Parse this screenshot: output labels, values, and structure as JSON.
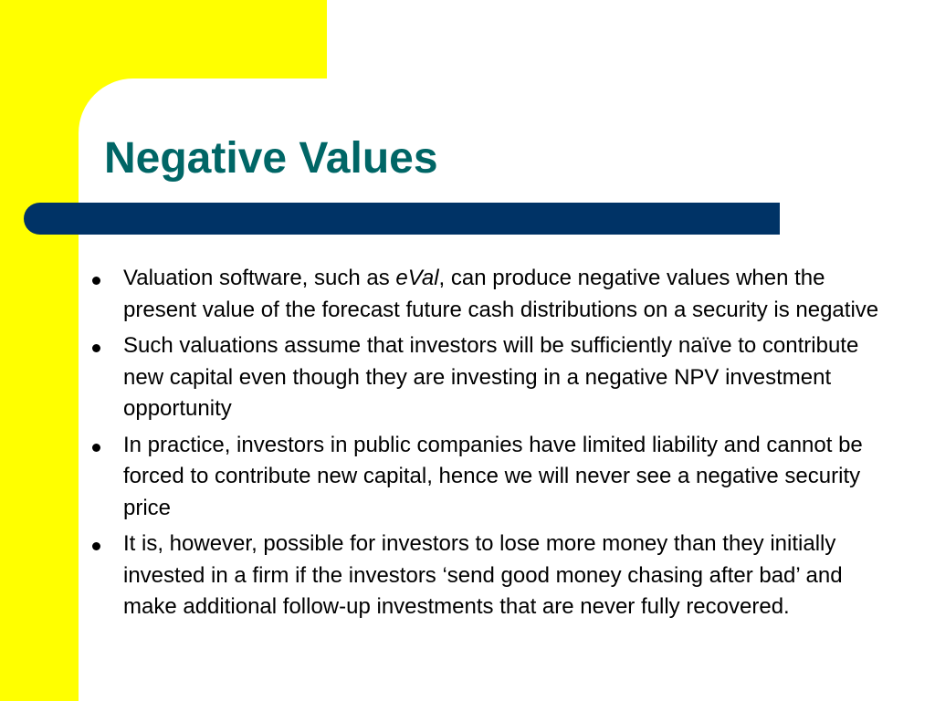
{
  "slide": {
    "title": "Negative Values",
    "bullets": [
      {
        "before": "Valuation software, such as ",
        "italic": "eVal",
        "after": ", can produce negative values when the present value of the forecast future cash distributions on a security is negative"
      },
      {
        "text": "Such valuations assume that investors will be sufficiently naïve to contribute new capital even though they are investing in a negative NPV investment opportunity"
      },
      {
        "text": "In practice, investors in public companies have limited liability and cannot be forced to contribute new capital, hence we will never see a negative security price"
      },
      {
        "text": "It is, however, possible for investors to lose more money than they initially invested in a firm if the investors ‘send good money chasing after bad’ and make additional follow-up investments that are never fully recovered."
      }
    ]
  },
  "colors": {
    "accent_yellow": "#ffff00",
    "title_teal": "#006666",
    "bar_navy": "#003366"
  }
}
